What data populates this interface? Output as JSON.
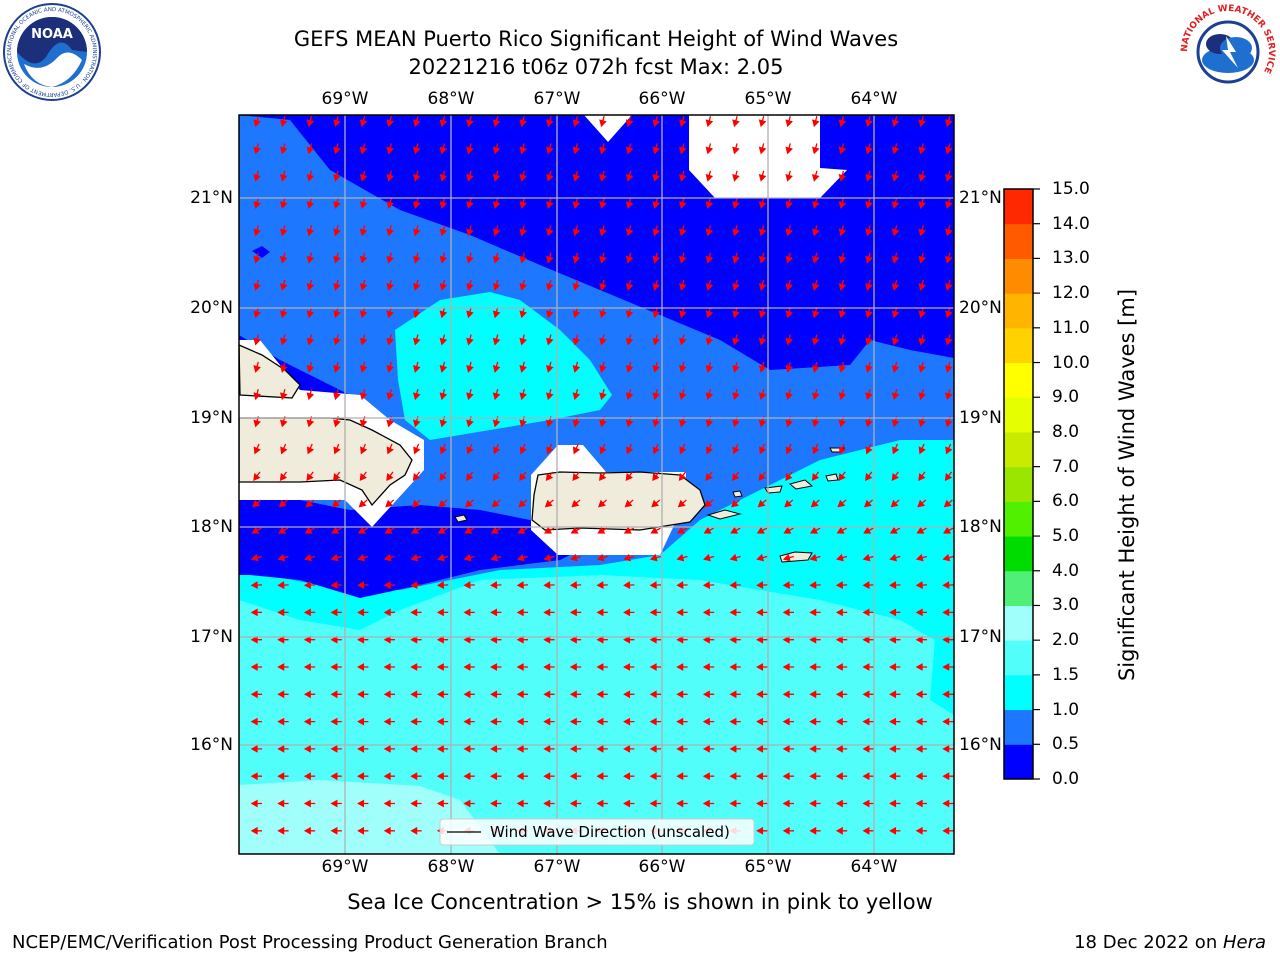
{
  "header": {
    "title_line1": "GEFS MEAN Puerto Rico Significant Height of Wind Waves",
    "title_line2": "20221216 t06z 072h fcst   Max: 2.05"
  },
  "logos": {
    "noaa_text": "NOAA",
    "noaa_ring_text": "NATIONAL OCEANIC AND ATMOSPHERIC ADMINISTRATION · U.S. DEPARTMENT OF COMMERCE",
    "nws_ring_text": "NATIONAL WEATHER SERVICE"
  },
  "map": {
    "lon_labels": [
      "69°W",
      "68°W",
      "67°W",
      "66°W",
      "65°W",
      "64°W"
    ],
    "lat_labels": [
      "21°N",
      "20°N",
      "19°N",
      "18°N",
      "17°N",
      "16°N"
    ],
    "legend_label": "Wind Wave Direction (unscaled)",
    "arrow_color": "#ff0000",
    "land_color": "#efecdc",
    "grid_color": "#b0b0b0"
  },
  "colorbar": {
    "title": "Significant Height of Wind Waves [m]",
    "ticks": [
      "0.0",
      "0.5",
      "1.0",
      "1.5",
      "2.0",
      "3.0",
      "4.0",
      "5.0",
      "6.0",
      "7.0",
      "8.0",
      "9.0",
      "10.0",
      "11.0",
      "12.0",
      "13.0",
      "14.0",
      "15.0"
    ],
    "colors": [
      "#0000ff",
      "#1e78ff",
      "#00ffff",
      "#52fefa",
      "#a0fffa",
      "#50f078",
      "#00dc00",
      "#50f000",
      "#9be600",
      "#c8eb00",
      "#e6ff00",
      "#ffff00",
      "#ffd200",
      "#ffb400",
      "#ff8c00",
      "#ff5a00",
      "#ff2800"
    ]
  },
  "notes": {
    "sea_ice": "Sea Ice Concentration > 15% is shown in pink to yellow"
  },
  "footer": {
    "left": "NCEP/EMC/Verification Post Processing Product Generation Branch",
    "right_prefix": "18 Dec 2022 on ",
    "right_host": "Hera"
  }
}
